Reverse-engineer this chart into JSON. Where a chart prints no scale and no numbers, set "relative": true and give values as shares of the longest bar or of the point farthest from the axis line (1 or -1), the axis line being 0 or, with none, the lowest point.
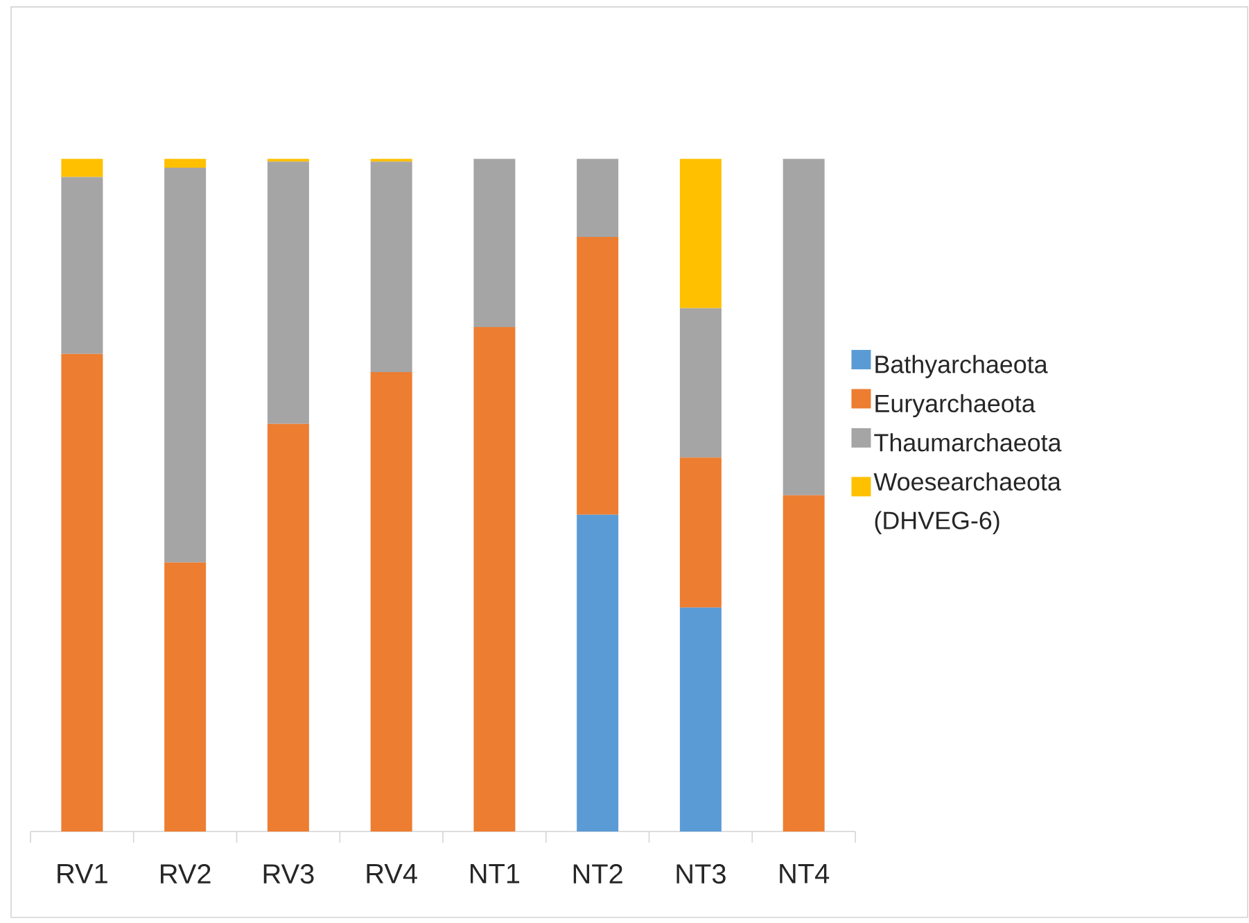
{
  "chart_data": {
    "type": "bar",
    "stacked": true,
    "relative": true,
    "categories": [
      "RV1",
      "RV2",
      "RV3",
      "RV4",
      "NT1",
      "NT2",
      "NT3",
      "NT4"
    ],
    "series": [
      {
        "name": "Bathyarchaeota",
        "color": "#5b9bd5",
        "values": [
          0,
          0,
          0,
          0,
          0,
          0.471,
          0.333,
          0
        ]
      },
      {
        "name": "Euryarchaeota",
        "color": "#ed7d31",
        "values": [
          0.71,
          0.4,
          0.606,
          0.683,
          0.75,
          0.413,
          0.223,
          0.5
        ]
      },
      {
        "name": "Thaumarchaeota",
        "color": "#a5a5a5",
        "values": [
          0.263,
          0.587,
          0.39,
          0.313,
          0.25,
          0.116,
          0.222,
          0.5
        ]
      },
      {
        "name": "Woesearchaeota (DHVEG-6)",
        "color": "#ffc000",
        "values": [
          0.027,
          0.013,
          0.004,
          0.004,
          0,
          0,
          0.222,
          0
        ]
      }
    ],
    "legend": "right"
  }
}
